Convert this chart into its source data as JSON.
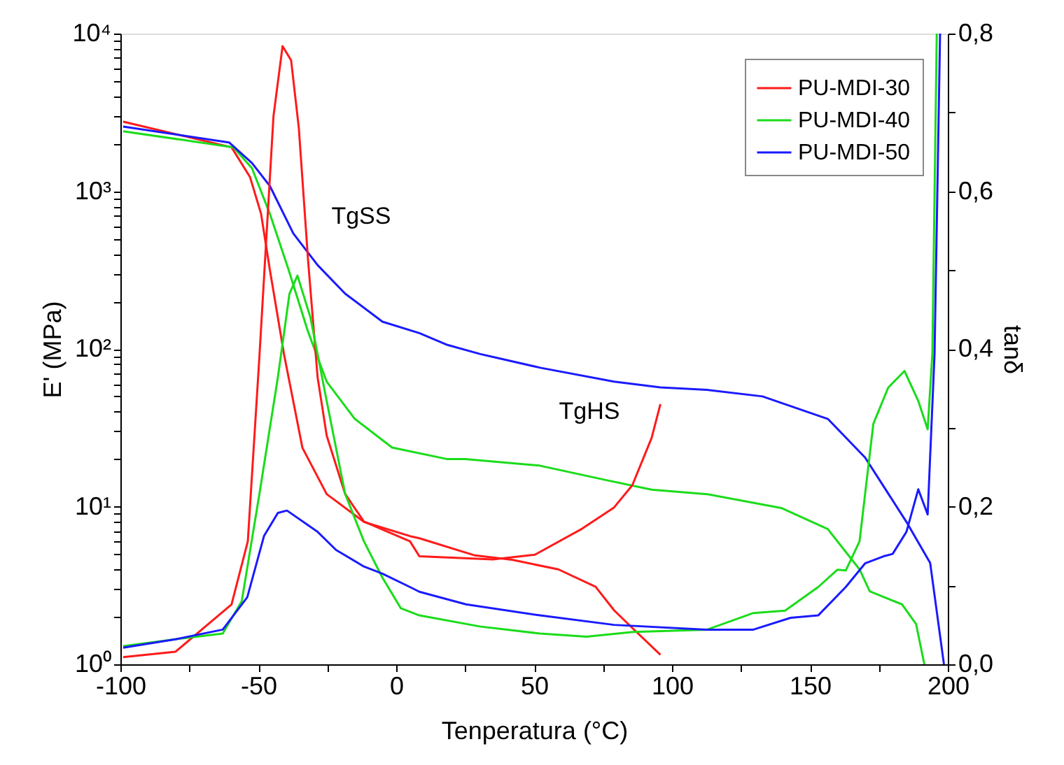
{
  "chart_data": {
    "type": "line",
    "xlabel": "Tenperatura (°C)",
    "ylabel": "E' (MPa)",
    "y2label": "tanδ",
    "xlim": [
      -100,
      200
    ],
    "xticks": [
      -100,
      {
        "value": -75,
        "label": null
      },
      -50,
      {
        "value": -25,
        "label": null
      },
      0,
      {
        "value": 25,
        "label": null
      },
      50,
      {
        "value": 75,
        "label": null
      },
      100,
      {
        "value": 125,
        "label": null
      },
      150,
      {
        "value": 175,
        "label": null
      },
      200
    ],
    "ylim": [
      1,
      10000
    ],
    "log": "y",
    "yticks": [
      {
        "value": 1,
        "label": "10⁰"
      },
      {
        "value": 2,
        "label": null
      },
      {
        "value": 3,
        "label": null
      },
      {
        "value": 4,
        "label": null
      },
      {
        "value": 5,
        "label": null
      },
      {
        "value": 6,
        "label": null
      },
      {
        "value": 7,
        "label": null
      },
      {
        "value": 8,
        "label": null
      },
      {
        "value": 9,
        "label": null
      },
      {
        "value": 10,
        "label": "10¹"
      },
      {
        "value": 20,
        "label": null
      },
      {
        "value": 30,
        "label": null
      },
      {
        "value": 40,
        "label": null
      },
      {
        "value": 50,
        "label": null
      },
      {
        "value": 60,
        "label": null
      },
      {
        "value": 70,
        "label": null
      },
      {
        "value": 80,
        "label": null
      },
      {
        "value": 90,
        "label": null
      },
      {
        "value": 100,
        "label": "10²"
      },
      {
        "value": 200,
        "label": null
      },
      {
        "value": 300,
        "label": null
      },
      {
        "value": 400,
        "label": null
      },
      {
        "value": 500,
        "label": null
      },
      {
        "value": 600,
        "label": null
      },
      {
        "value": 700,
        "label": null
      },
      {
        "value": 800,
        "label": null
      },
      {
        "value": 900,
        "label": null
      },
      {
        "value": 1000,
        "label": "10³"
      },
      {
        "value": 2000,
        "label": null
      },
      {
        "value": 3000,
        "label": null
      },
      {
        "value": 4000,
        "label": null
      },
      {
        "value": 5000,
        "label": null
      },
      {
        "value": 6000,
        "label": null
      },
      {
        "value": 7000,
        "label": null
      },
      {
        "value": 8000,
        "label": null
      },
      {
        "value": 9000,
        "label": null
      },
      {
        "value": 10000,
        "label": "10⁴"
      }
    ],
    "y2lim": [
      0,
      0.8
    ],
    "y2ticks": [
      {
        "value": 0,
        "label": "0,0"
      },
      {
        "value": 0.1,
        "label": null
      },
      {
        "value": 0.2,
        "label": "0,2"
      },
      {
        "value": 0.3,
        "label": null
      },
      {
        "value": 0.4,
        "label": "0,4"
      },
      {
        "value": 0.5,
        "label": null
      },
      {
        "value": 0.6,
        "label": "0,6"
      },
      {
        "value": 0.7,
        "label": null
      },
      {
        "value": 0.8,
        "label": "0,8"
      }
    ],
    "grid": false,
    "legend": "top right",
    "annotations": [
      "TgSS",
      "TgHS"
    ],
    "series": [
      {
        "name": "PU-MDI-30",
        "color": "#ff1a1a",
        "x": [
          -99,
          -59.7,
          -53,
          -49,
          -45.8,
          -40.7,
          -34,
          -25.2,
          -11.7,
          5,
          8.4,
          28.6,
          42,
          58.8,
          72.3,
          79,
          85.6,
          95.8
        ],
        "values": [
          2760,
          1900,
          1230,
          720,
          317,
          93,
          23.6,
          12,
          8,
          6.5,
          6.3,
          4.9,
          4.6,
          4.0,
          3.1,
          2.2,
          1.7,
          1.15
        ]
      },
      {
        "name": "PU-MDI-40",
        "color": "#1adc1a",
        "x": [
          -99,
          -59,
          -52.3,
          -45.8,
          -39,
          -32,
          -25.2,
          -15,
          -1.5,
          18.6,
          25,
          52,
          75.6,
          92.6,
          112.7,
          139.6,
          156.5,
          168,
          171.7,
          183.4,
          188.5,
          191.5
        ],
        "values": [
          2400,
          1900,
          1400,
          720,
          317,
          129,
          62,
          36,
          23.7,
          20,
          20,
          18.2,
          14.8,
          12.8,
          12,
          9.8,
          7.2,
          4.0,
          2.9,
          2.4,
          1.8,
          1.0
        ]
      },
      {
        "name": "PU-MDI-50",
        "color": "#1a1aff",
        "x": [
          -99,
          -60.6,
          -52.3,
          -45.8,
          -37.3,
          -28.5,
          -18.5,
          -5,
          8.4,
          18.6,
          30.3,
          52.2,
          79,
          95.8,
          112.7,
          132.8,
          156.5,
          170,
          185,
          193.6,
          198.6
        ],
        "values": [
          2570,
          2040,
          1510,
          1080,
          540,
          340,
          224,
          149,
          126,
          106,
          93,
          76,
          62,
          57,
          55,
          50,
          36,
          20.5,
          8.0,
          4.4,
          1.0
        ]
      },
      {
        "color": "#ff1a1a",
        "axis": "y2",
        "x": [
          -99,
          -80,
          -59.7,
          -53.8,
          -49.6,
          -44.5,
          -41.2,
          -38.1,
          -35.3,
          -31.9,
          -28.5,
          -25.2,
          -18.5,
          -11.7,
          5,
          8.4,
          35,
          50.3,
          67.4,
          79,
          85.6,
          92.6,
          95.8
        ],
        "values": [
          0.009,
          0.016,
          0.076,
          0.156,
          0.39,
          0.695,
          0.784,
          0.766,
          0.68,
          0.51,
          0.364,
          0.29,
          0.216,
          0.181,
          0.156,
          0.137,
          0.133,
          0.139,
          0.172,
          0.199,
          0.227,
          0.287,
          0.33
        ]
      },
      {
        "color": "#1adc1a",
        "axis": "y2",
        "x": [
          -99,
          -79.7,
          -62.9,
          -56,
          -49.6,
          -42.9,
          -38.7,
          -35.8,
          -31.1,
          -25.2,
          -18.5,
          -11.7,
          -5,
          1.7,
          8.4,
          30.3,
          52.2,
          69,
          85.9,
          112.7,
          129.5,
          141,
          153,
          160,
          163,
          168,
          173,
          178.4,
          184.3,
          189.3,
          192.7,
          194.4,
          196
        ],
        "values": [
          0.023,
          0.032,
          0.039,
          0.08,
          0.216,
          0.364,
          0.47,
          0.493,
          0.44,
          0.334,
          0.216,
          0.156,
          0.11,
          0.071,
          0.062,
          0.048,
          0.039,
          0.035,
          0.041,
          0.044,
          0.065,
          0.068,
          0.098,
          0.12,
          0.119,
          0.156,
          0.305,
          0.351,
          0.372,
          0.334,
          0.298,
          0.394,
          0.8
        ]
      },
      {
        "color": "#1a1aff",
        "axis": "y2",
        "x": [
          -99,
          -79.7,
          -62.9,
          -54,
          -47.9,
          -42.9,
          -39.6,
          -28.5,
          -21.8,
          -11.7,
          -5,
          5,
          8.4,
          25.3,
          52.2,
          79,
          112.7,
          129.5,
          143,
          153,
          163,
          170,
          176.7,
          180,
          185,
          189.3,
          192.7,
          195.2,
          197.2
        ],
        "values": [
          0.021,
          0.032,
          0.044,
          0.085,
          0.163,
          0.192,
          0.195,
          0.168,
          0.145,
          0.124,
          0.115,
          0.098,
          0.092,
          0.076,
          0.062,
          0.05,
          0.044,
          0.044,
          0.059,
          0.062,
          0.098,
          0.128,
          0.137,
          0.14,
          0.168,
          0.222,
          0.19,
          0.394,
          0.8
        ]
      }
    ]
  }
}
